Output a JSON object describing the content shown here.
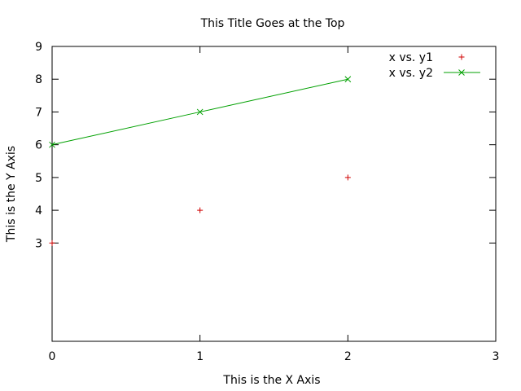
{
  "chart_data": {
    "type": "line",
    "title": "This Title Goes at the Top",
    "xlabel": "This is the X Axis",
    "ylabel": "This is the Y Axis",
    "xlim": [
      0,
      3
    ],
    "ylim": [
      0,
      9
    ],
    "x_ticks": [
      0,
      1,
      2,
      3
    ],
    "y_ticks": [
      3,
      4,
      5,
      6,
      7,
      8,
      9
    ],
    "x_tick_labels": [
      "0",
      "1",
      "2",
      "3"
    ],
    "y_tick_labels": [
      "3",
      "4",
      "5",
      "6",
      "7",
      "8",
      "9"
    ],
    "grid": false,
    "legend_position": "top-right",
    "series": [
      {
        "name": "x vs. y1",
        "style": "points",
        "marker": "plus",
        "color": "#d00000",
        "x": [
          0,
          1,
          2
        ],
        "y": [
          3,
          4,
          5
        ]
      },
      {
        "name": "x vs. y2",
        "style": "linespoints",
        "marker": "cross",
        "color": "#00a000",
        "x": [
          0,
          1,
          2
        ],
        "y": [
          6,
          7,
          8
        ]
      }
    ]
  }
}
